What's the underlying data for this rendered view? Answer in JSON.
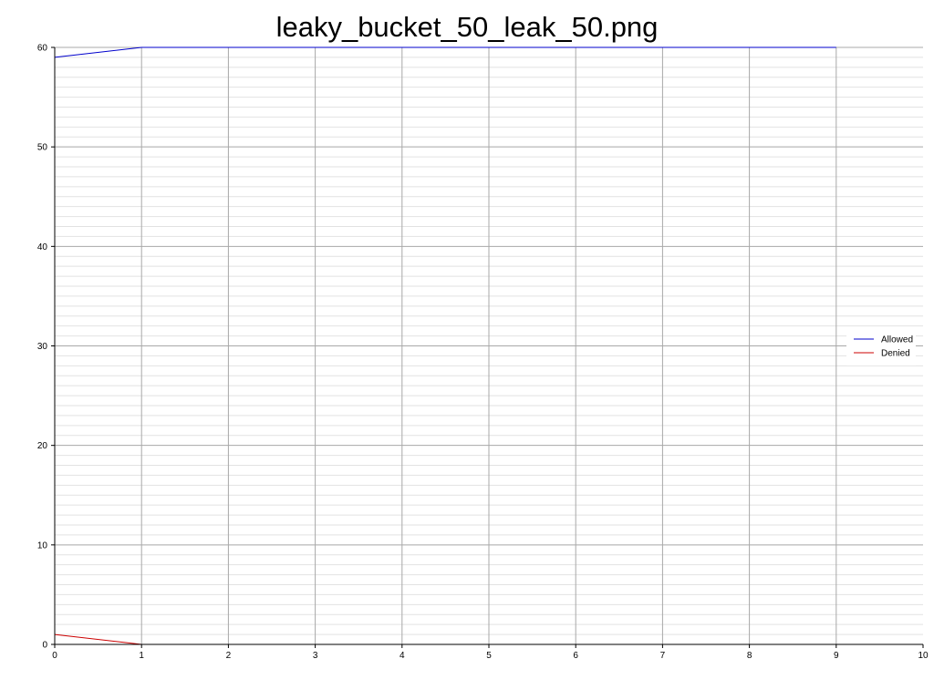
{
  "chart_data": {
    "type": "line",
    "title": "leaky_bucket_50_leak_50.png",
    "xlabel": "",
    "ylabel": "",
    "xlim": [
      0,
      10
    ],
    "ylim": [
      0,
      60
    ],
    "x_ticks": [
      0,
      1,
      2,
      3,
      4,
      5,
      6,
      7,
      8,
      9,
      10
    ],
    "y_ticks": [
      0,
      10,
      20,
      30,
      40,
      50,
      60
    ],
    "grid": true,
    "minor_grid": true,
    "legend_position": "right",
    "series": [
      {
        "name": "Allowed",
        "color": "#0000cc",
        "x": [
          0,
          1,
          2,
          3,
          4,
          5,
          6,
          7,
          8,
          9
        ],
        "y": [
          59,
          60,
          60,
          60,
          60,
          60,
          60,
          60,
          60,
          60
        ]
      },
      {
        "name": "Denied",
        "color": "#cc0000",
        "x": [
          0,
          1,
          2,
          3,
          4,
          5,
          6,
          7,
          8,
          9
        ],
        "y": [
          1,
          0,
          0,
          0,
          0,
          0,
          0,
          0,
          0,
          0
        ]
      }
    ]
  }
}
